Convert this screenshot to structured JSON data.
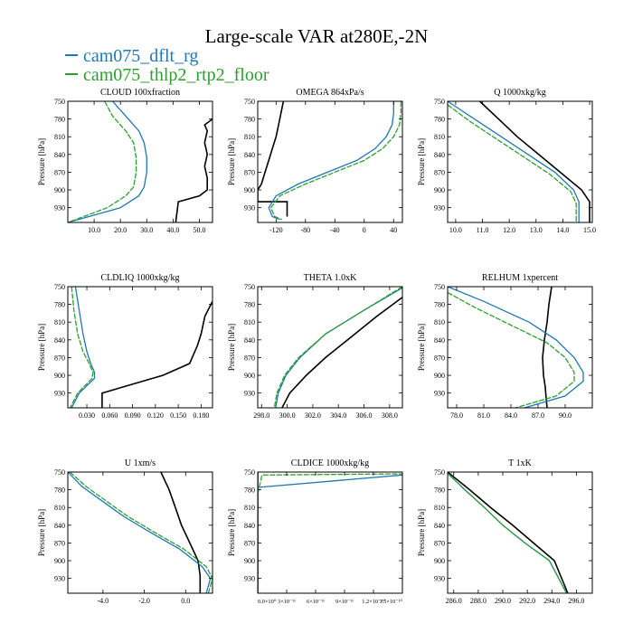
{
  "title": "Large-scale VAR at280E,-2N",
  "legend": [
    {
      "name": "cam075_dflt_rg",
      "color": "#1f77b4"
    },
    {
      "name": "cam075_thlp2_rtp2_floor",
      "color": "#2ca02c"
    }
  ],
  "colors": {
    "reference": "#000000",
    "dflt": "#1f77b4",
    "thlp2": "#2ca02c"
  },
  "chart_data": [
    {
      "type": "line",
      "title": "CLOUD  100xfraction",
      "ylabel": "Pressure [hPa]",
      "ylim": [
        955,
        750
      ],
      "xlim": [
        0,
        55
      ],
      "yticks": [
        750,
        780,
        810,
        840,
        870,
        900,
        930
      ],
      "xticks": [
        10,
        20,
        30,
        40,
        50
      ],
      "xticklabels": [
        "10.0",
        "20.0",
        "30.0",
        "40.0",
        "50.0"
      ],
      "series": [
        {
          "name": "black",
          "x": [
            55,
            52,
            53,
            52,
            53,
            52,
            53,
            53,
            50,
            42,
            41
          ],
          "y": [
            780,
            790,
            800,
            820,
            840,
            860,
            880,
            900,
            910,
            920,
            955
          ]
        },
        {
          "name": "cam075_dflt_rg",
          "x": [
            17,
            22,
            27,
            29,
            30,
            30,
            29,
            27,
            20,
            8,
            0
          ],
          "y": [
            750,
            775,
            800,
            820,
            845,
            870,
            895,
            910,
            930,
            945,
            955
          ]
        },
        {
          "name": "cam075_thlp2_rtp2_floor",
          "x": [
            14,
            17,
            22,
            25,
            26,
            26,
            25,
            22,
            15,
            6,
            0
          ],
          "y": [
            750,
            775,
            800,
            820,
            845,
            870,
            895,
            910,
            930,
            945,
            955
          ]
        }
      ]
    },
    {
      "type": "line",
      "title": "OMEGA  864xPa/s",
      "ylabel": "Pressure [hPa]",
      "ylim": [
        955,
        750
      ],
      "xlim": [
        -145,
        52
      ],
      "yticks": [
        750,
        780,
        810,
        840,
        870,
        900,
        930
      ],
      "xticks": [
        -120,
        -80,
        -40,
        0,
        40
      ],
      "xticklabels": [
        "-120",
        "-80",
        "-40",
        "0",
        "40"
      ],
      "series": [
        {
          "name": "black",
          "x": [
            -110,
            -115,
            -120,
            -125,
            -130,
            -135,
            -140,
            -145,
            -145,
            -105,
            -105
          ],
          "y": [
            750,
            780,
            810,
            830,
            850,
            870,
            890,
            900,
            920,
            920,
            945
          ]
        },
        {
          "name": "cam075_dflt_rg",
          "x": [
            40,
            40,
            38,
            30,
            15,
            -10,
            -50,
            -90,
            -120,
            -130,
            -125,
            -115
          ],
          "y": [
            750,
            770,
            790,
            810,
            830,
            850,
            870,
            890,
            910,
            930,
            945,
            950
          ]
        },
        {
          "name": "cam075_thlp2_rtp2_floor",
          "x": [
            50,
            50,
            48,
            40,
            25,
            0,
            -40,
            -80,
            -115,
            -127,
            -122,
            -112
          ],
          "y": [
            750,
            770,
            790,
            810,
            830,
            850,
            870,
            890,
            910,
            930,
            945,
            950
          ]
        }
      ]
    },
    {
      "type": "line",
      "title": "Q  1000xkg/kg",
      "ylabel": "Pressure [hPa]",
      "ylim": [
        955,
        750
      ],
      "xlim": [
        9.7,
        15.1
      ],
      "yticks": [
        750,
        780,
        810,
        840,
        870,
        900,
        930
      ],
      "xticks": [
        10,
        11,
        12,
        13,
        14,
        15
      ],
      "xticklabels": [
        "10.0",
        "11.0",
        "12.0",
        "13.0",
        "14.0",
        "15.0"
      ],
      "series": [
        {
          "name": "black",
          "x": [
            10.9,
            11.6,
            12.3,
            13.1,
            13.9,
            14.7,
            15.0,
            15.0
          ],
          "y": [
            750,
            780,
            810,
            840,
            870,
            900,
            920,
            955
          ]
        },
        {
          "name": "cam075_dflt_rg",
          "x": [
            9.7,
            10.7,
            11.7,
            12.7,
            13.7,
            14.4,
            14.6,
            14.6
          ],
          "y": [
            750,
            780,
            810,
            840,
            870,
            900,
            920,
            955
          ]
        },
        {
          "name": "cam075_thlp2_rtp2_floor",
          "x": [
            9.7,
            10.5,
            11.5,
            12.5,
            13.5,
            14.3,
            14.5,
            14.5
          ],
          "y": [
            756,
            783,
            813,
            843,
            873,
            903,
            923,
            955
          ]
        }
      ]
    },
    {
      "type": "line",
      "title": "CLDLIQ  1000xkg/kg",
      "ylabel": "Pressure [hPa]",
      "ylim": [
        955,
        750
      ],
      "xlim": [
        0.005,
        0.195
      ],
      "yticks": [
        750,
        780,
        810,
        840,
        870,
        900,
        930
      ],
      "xticks": [
        0.03,
        0.06,
        0.09,
        0.12,
        0.15,
        0.18
      ],
      "xticklabels": [
        "0.030",
        "0.060",
        "0.090",
        "0.120",
        "0.150",
        "0.180"
      ],
      "series": [
        {
          "name": "black",
          "x": [
            0.195,
            0.185,
            0.18,
            0.175,
            0.165,
            0.13,
            0.05,
            0.05
          ],
          "y": [
            775,
            800,
            830,
            850,
            880,
            900,
            930,
            955
          ]
        },
        {
          "name": "cam075_dflt_rg",
          "x": [
            0.015,
            0.02,
            0.025,
            0.03,
            0.035,
            0.04,
            0.04,
            0.02,
            0.01
          ],
          "y": [
            750,
            790,
            830,
            860,
            880,
            895,
            905,
            930,
            955
          ]
        },
        {
          "name": "cam075_thlp2_rtp2_floor",
          "x": [
            0.01,
            0.013,
            0.018,
            0.025,
            0.033,
            0.038,
            0.037,
            0.018,
            0.008
          ],
          "y": [
            750,
            790,
            830,
            860,
            880,
            895,
            905,
            930,
            955
          ]
        }
      ]
    },
    {
      "type": "line",
      "title": "THETA  1.0xK",
      "ylabel": "Pressure [hPa]",
      "ylim": [
        955,
        750
      ],
      "xlim": [
        297.7,
        309
      ],
      "yticks": [
        750,
        780,
        810,
        840,
        870,
        900,
        930
      ],
      "xticks": [
        298,
        300,
        302,
        304,
        306,
        308
      ],
      "xticklabels": [
        "298.0",
        "300.0",
        "302.0",
        "304.0",
        "306.0",
        "308.0"
      ],
      "series": [
        {
          "name": "black",
          "x": [
            309,
            307,
            305,
            303,
            301.5,
            300.2,
            299.6
          ],
          "y": [
            768,
            800,
            835,
            870,
            900,
            930,
            955
          ]
        },
        {
          "name": "cam075_dflt_rg",
          "x": [
            309,
            306,
            303,
            301,
            299.9,
            299.3,
            299.1
          ],
          "y": [
            752,
            790,
            830,
            870,
            900,
            930,
            955
          ]
        },
        {
          "name": "cam075_thlp2_rtp2_floor",
          "x": [
            309,
            306,
            303,
            300.9,
            299.8,
            299.2,
            299.0
          ],
          "y": [
            750,
            790,
            830,
            870,
            900,
            930,
            955
          ]
        }
      ]
    },
    {
      "type": "line",
      "title": "RELHUM  1xpercent",
      "ylabel": "Pressure [hPa]",
      "ylim": [
        955,
        750
      ],
      "xlim": [
        77,
        93
      ],
      "yticks": [
        750,
        780,
        810,
        840,
        870,
        900,
        930
      ],
      "xticks": [
        78,
        81,
        84,
        87,
        90
      ],
      "xticklabels": [
        "78.0",
        "81.0",
        "84.0",
        "87.0",
        "90.0"
      ],
      "series": [
        {
          "name": "black",
          "x": [
            88.5,
            88.2,
            88.0,
            87.7,
            87.5,
            87.6,
            87.8,
            87.9,
            88.0
          ],
          "y": [
            750,
            780,
            810,
            840,
            870,
            900,
            920,
            940,
            955
          ]
        },
        {
          "name": "cam075_dflt_rg",
          "x": [
            77,
            81,
            86,
            89,
            91,
            92,
            92,
            90,
            85.5
          ],
          "y": [
            750,
            775,
            810,
            840,
            870,
            895,
            910,
            935,
            955
          ]
        },
        {
          "name": "cam075_thlp2_rtp2_floor",
          "x": [
            77,
            80,
            84,
            88,
            90,
            91,
            91,
            89,
            84.5
          ],
          "y": [
            760,
            785,
            815,
            845,
            870,
            895,
            910,
            935,
            955
          ]
        }
      ]
    },
    {
      "type": "line",
      "title": "U  1xm/s",
      "ylabel": "Pressure [hPa]",
      "ylim": [
        955,
        750
      ],
      "xlim": [
        -5.7,
        1.3
      ],
      "yticks": [
        750,
        780,
        810,
        840,
        870,
        900,
        930
      ],
      "xticks": [
        -4,
        -2,
        0
      ],
      "xticklabels": [
        "-4.0",
        "-2.0",
        "0.0"
      ],
      "series": [
        {
          "name": "black",
          "x": [
            -1.2,
            -0.8,
            -0.5,
            -0.2,
            0.2,
            0.6,
            0.7,
            0.7
          ],
          "y": [
            750,
            780,
            810,
            840,
            870,
            900,
            925,
            955
          ]
        },
        {
          "name": "cam075_dflt_rg",
          "x": [
            -5.7,
            -5.0,
            -4.0,
            -3.0,
            -1.8,
            -0.3,
            0.8,
            1.2,
            1.0
          ],
          "y": [
            750,
            775,
            800,
            825,
            850,
            880,
            910,
            930,
            955
          ]
        },
        {
          "name": "cam075_thlp2_rtp2_floor",
          "x": [
            -5.6,
            -4.8,
            -3.8,
            -2.8,
            -1.6,
            -0.1,
            1.0,
            1.3,
            1.1
          ],
          "y": [
            750,
            775,
            800,
            825,
            850,
            880,
            910,
            930,
            955
          ]
        }
      ]
    },
    {
      "type": "line",
      "title": "CLDICE  1000xkg/kg",
      "ylabel": "Pressure [hPa]",
      "ylim": [
        955,
        750
      ],
      "xlim": [
        0,
        1
      ],
      "yticks": [
        750,
        780,
        810,
        840,
        870,
        900,
        930
      ],
      "xticks": [
        0,
        0.2,
        0.4,
        0.6,
        0.8,
        1.0
      ],
      "xticklabels": [
        "0.0×10⁰",
        "3×10⁻¹¹",
        "6×10⁻¹¹",
        "9×10⁻¹¹",
        "1.2×10⁻¹⁰",
        "1.5×10⁻¹⁰"
      ],
      "series": [
        {
          "name": "black",
          "x": [
            0,
            0
          ],
          "y": [
            750,
            955
          ]
        },
        {
          "name": "cam075_dflt_rg",
          "x": [
            0,
            1
          ],
          "y": [
            776,
            755
          ]
        },
        {
          "name": "cam075_thlp2_rtp2_floor",
          "x": [
            0,
            0.03,
            1
          ],
          "y": [
            787,
            755,
            753
          ]
        }
      ]
    },
    {
      "type": "line",
      "title": "T  1xK",
      "ylabel": "Pressure [hPa]",
      "ylim": [
        955,
        750
      ],
      "xlim": [
        285.5,
        297.3
      ],
      "yticks": [
        750,
        780,
        810,
        840,
        870,
        900,
        930
      ],
      "xticks": [
        286,
        288,
        290,
        292,
        294,
        296
      ],
      "xticklabels": [
        "286.0",
        "288.0",
        "290.0",
        "292.0",
        "294.0",
        "296.0"
      ],
      "series": [
        {
          "name": "black",
          "x": [
            285.5,
            287.3,
            289.0,
            290.8,
            292.5,
            294.2,
            295.3
          ],
          "y": [
            750,
            780,
            810,
            840,
            870,
            900,
            955
          ]
        },
        {
          "name": "cam075_dflt_rg",
          "x": [
            285.5,
            286.9,
            288.5,
            290.0,
            291.8,
            293.8,
            295.2
          ],
          "y": [
            752,
            780,
            810,
            840,
            870,
            900,
            955
          ]
        },
        {
          "name": "cam075_thlp2_rtp2_floor",
          "x": [
            285.5,
            286.9,
            288.5,
            290.0,
            291.8,
            293.8,
            295.2
          ],
          "y": [
            752,
            780,
            810,
            840,
            870,
            900,
            955
          ]
        }
      ]
    }
  ]
}
